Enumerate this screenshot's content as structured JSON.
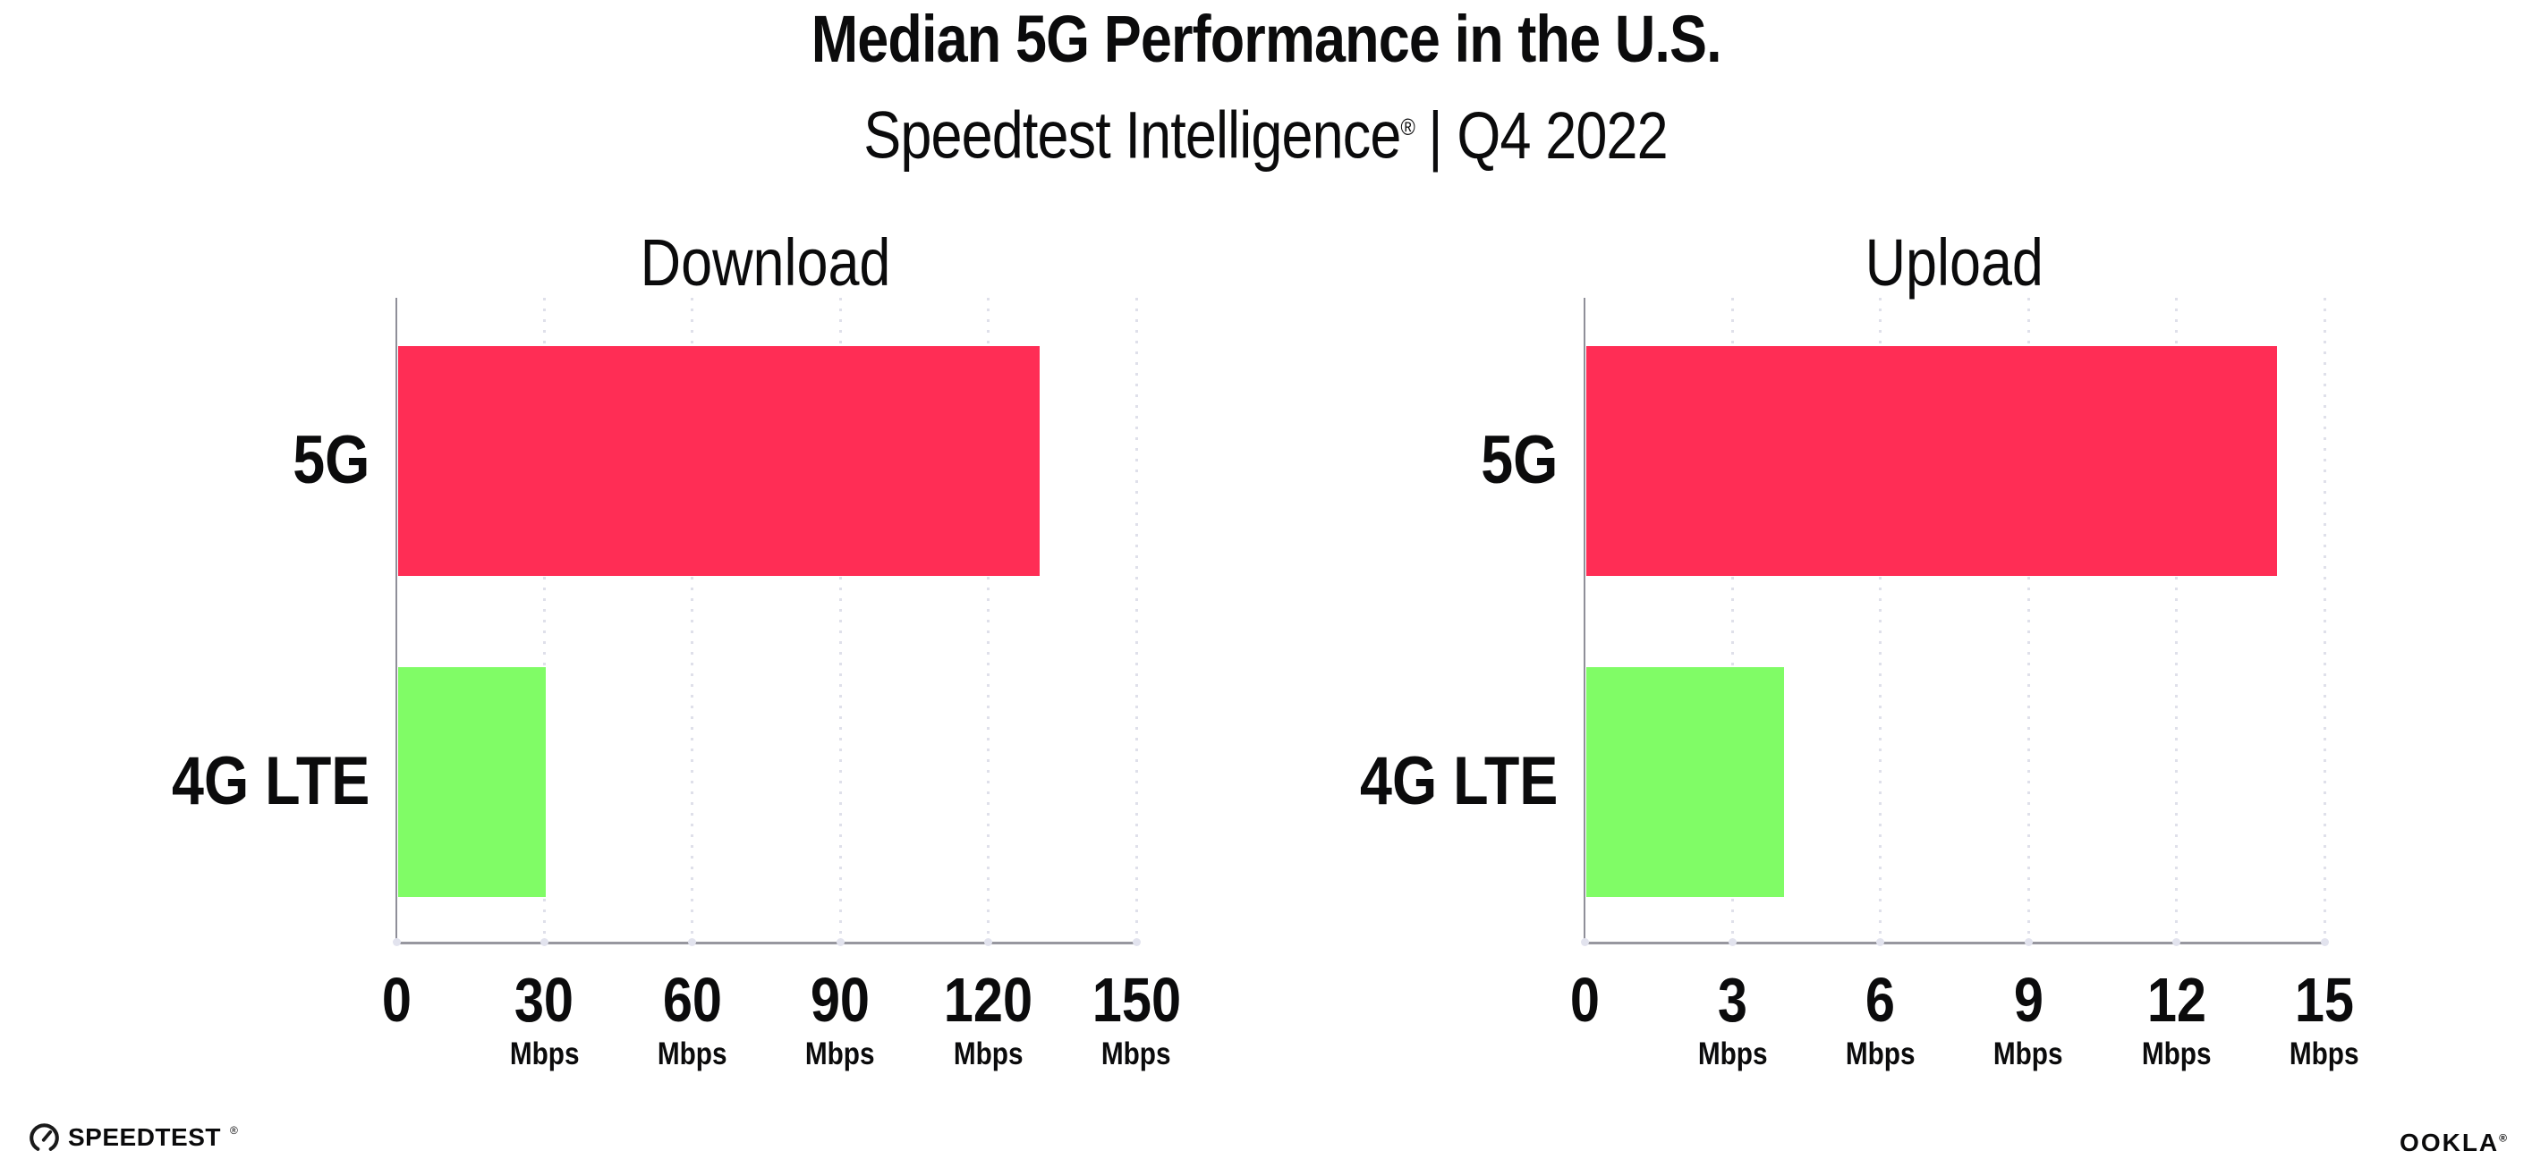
{
  "header": {
    "title": "Median 5G Performance in the U.S.",
    "subtitle": {
      "brand": "Speedtest Intelligence",
      "registered_mark": "®",
      "rest": "| Q4 2022"
    }
  },
  "chart_data": [
    {
      "type": "bar",
      "orientation": "horizontal",
      "title": "Download",
      "categories": [
        "5G",
        "4G LTE"
      ],
      "values": [
        130,
        30
      ],
      "unit": "Mbps",
      "xlim": [
        0,
        150
      ],
      "xticks": [
        0,
        30,
        60,
        90,
        120,
        150
      ],
      "bar_colors": [
        "#FF2D55",
        "#80FC66"
      ],
      "grid": "vertical-dotted",
      "legend": "none"
    },
    {
      "type": "bar",
      "orientation": "horizontal",
      "title": "Upload",
      "categories": [
        "5G",
        "4G LTE"
      ],
      "values": [
        14,
        4
      ],
      "unit": "Mbps",
      "xlim": [
        0,
        15
      ],
      "xticks": [
        0,
        3,
        6,
        9,
        12,
        15
      ],
      "bar_colors": [
        "#FF2D55",
        "#80FC66"
      ],
      "grid": "vertical-dotted",
      "legend": "none"
    }
  ],
  "colors": {
    "bar_5g": "#FF2D55",
    "bar_4g_lte": "#80FC66",
    "axis_line": "#97979F",
    "grid_dot": "#DFE0EA",
    "text": "#0B0B0C",
    "background": "#FFFFFF"
  },
  "footer": {
    "speedtest_label": "SPEEDTEST",
    "speedtest_mark": "®",
    "ookla_label": "OOKLA",
    "ookla_mark": "®"
  }
}
